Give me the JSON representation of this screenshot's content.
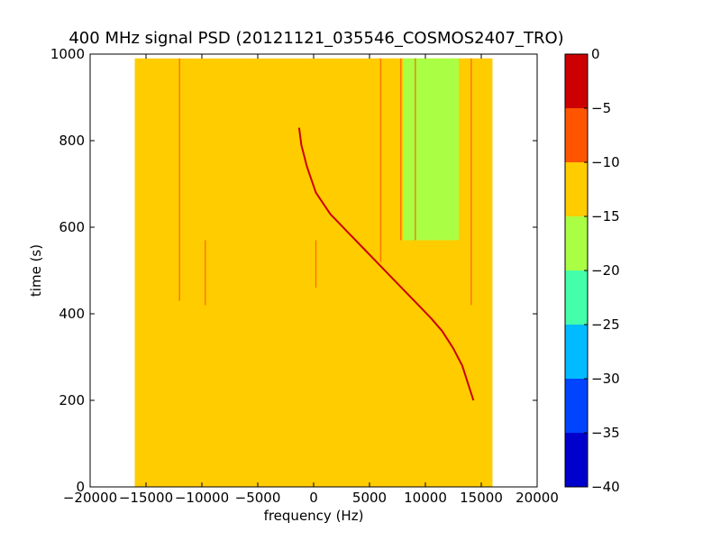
{
  "chart_data": {
    "type": "heatmap",
    "title": "400 MHz signal PSD (20121121_035546_COSMOS2407_TRO)",
    "xlabel": "frequency (Hz)",
    "ylabel": "time (s)",
    "xlim": [
      -20000,
      20000
    ],
    "ylim": [
      0,
      1000
    ],
    "x_ticks": [
      -20000,
      -15000,
      -10000,
      -5000,
      0,
      5000,
      10000,
      15000,
      20000
    ],
    "x_tick_labels": [
      "−20000",
      "−15000",
      "−10000",
      "−5000",
      "0",
      "5000",
      "10000",
      "15000",
      "20000"
    ],
    "y_ticks": [
      0,
      200,
      400,
      600,
      800,
      1000
    ],
    "y_tick_labels": [
      "0",
      "200",
      "400",
      "600",
      "800",
      "1000"
    ],
    "data_extent": {
      "freq": [
        -16000,
        16000
      ],
      "time": [
        0,
        990
      ]
    },
    "background_level": -12,
    "regions": [
      {
        "freq": [
          5000,
          8000
        ],
        "time": [
          570,
          990
        ],
        "level": -14
      },
      {
        "freq": [
          8000,
          13000
        ],
        "time": [
          570,
          990
        ],
        "level": -17
      },
      {
        "freq": [
          13000,
          16000
        ],
        "time": [
          570,
          990
        ],
        "level": -14
      },
      {
        "freq": [
          -16000,
          -15000
        ],
        "time": [
          0,
          990
        ],
        "level": -11
      },
      {
        "freq": [
          11000,
          16000
        ],
        "time": [
          0,
          570
        ],
        "level": -14
      }
    ],
    "doppler_trace": {
      "level": -3,
      "points": [
        [
          -1300,
          830
        ],
        [
          -1100,
          790
        ],
        [
          -600,
          740
        ],
        [
          200,
          680
        ],
        [
          1500,
          630
        ],
        [
          3000,
          590
        ],
        [
          4500,
          550
        ],
        [
          6000,
          510
        ],
        [
          7500,
          470
        ],
        [
          9000,
          430
        ],
        [
          10500,
          390
        ],
        [
          11500,
          360
        ],
        [
          12500,
          320
        ],
        [
          13300,
          280
        ],
        [
          13800,
          240
        ],
        [
          14300,
          200
        ]
      ]
    },
    "vertical_lines": [
      {
        "freq": -12000,
        "time": [
          430,
          990
        ],
        "level": -7
      },
      {
        "freq": -9700,
        "time": [
          420,
          570
        ],
        "level": -8
      },
      {
        "freq": 200,
        "time": [
          460,
          570
        ],
        "level": -8
      },
      {
        "freq": 6000,
        "time": [
          520,
          990
        ],
        "level": -7
      },
      {
        "freq": 7800,
        "time": [
          570,
          990
        ],
        "level": -8
      },
      {
        "freq": 9100,
        "time": [
          570,
          990
        ],
        "level": -8
      },
      {
        "freq": 14100,
        "time": [
          420,
          990
        ],
        "level": -5
      }
    ],
    "colorbar": {
      "min": -40,
      "max": 0,
      "ticks": [
        0,
        -5,
        -10,
        -15,
        -20,
        -25,
        -30,
        -35,
        -40
      ],
      "tick_labels": [
        "0",
        "−5",
        "−10",
        "−15",
        "−20",
        "−25",
        "−30",
        "−35",
        "−40"
      ],
      "bands": [
        {
          "range": [
            -40,
            -35
          ],
          "color": "#0000cc"
        },
        {
          "range": [
            -35,
            -30
          ],
          "color": "#0044ff"
        },
        {
          "range": [
            -30,
            -25
          ],
          "color": "#00bbff"
        },
        {
          "range": [
            -25,
            -20
          ],
          "color": "#44ffaa"
        },
        {
          "range": [
            -20,
            -15
          ],
          "color": "#aaff44"
        },
        {
          "range": [
            -15,
            -10
          ],
          "color": "#ffcc00"
        },
        {
          "range": [
            -10,
            -5
          ],
          "color": "#ff5500"
        },
        {
          "range": [
            -5,
            0
          ],
          "color": "#cc0000"
        }
      ]
    }
  }
}
